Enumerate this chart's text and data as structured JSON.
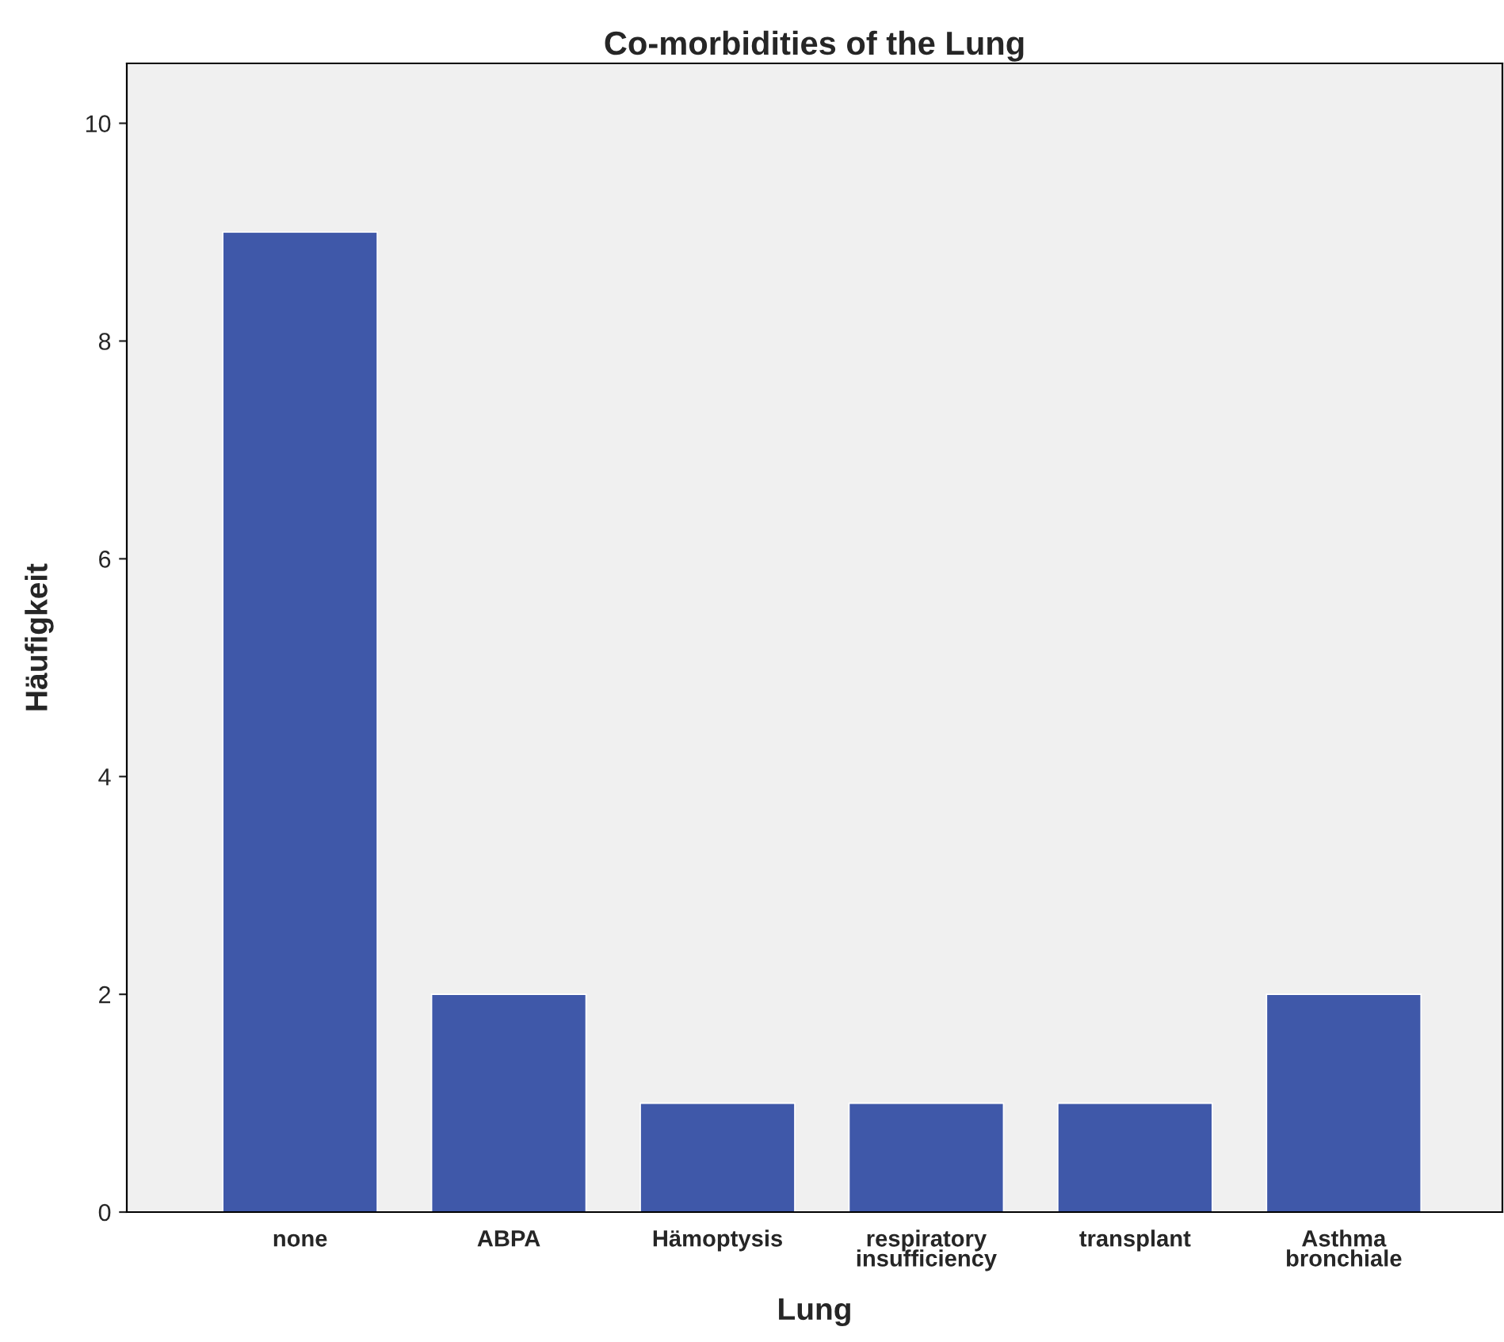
{
  "chart_data": {
    "type": "bar",
    "title": "Co-morbidities of the Lung",
    "xlabel": "Lung",
    "ylabel": "Häufigkeit",
    "categories": [
      "none",
      "ABPA",
      "Hämoptysis",
      "respiratory\ninsufficiency",
      "transplant",
      "Asthma\nbronchiale"
    ],
    "values": [
      9,
      2,
      1,
      1,
      1,
      2
    ],
    "color": "#3f58a9",
    "ylim": [
      0,
      10.55
    ],
    "yticks": [
      0,
      2,
      4,
      6,
      8,
      10
    ],
    "grid": false
  }
}
